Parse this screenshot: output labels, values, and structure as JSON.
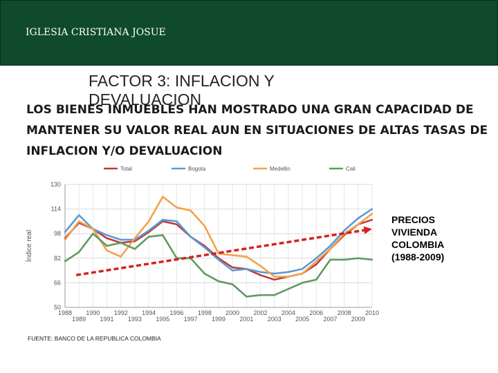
{
  "header": {
    "title": "IGLESIA CRISTIANA JOSUE"
  },
  "slide": {
    "title": "FACTOR 3: INFLACION Y DEVALUACION",
    "body": "LOS BIENES INMUEBLES HAN MOSTRADO UNA GRAN CAPACIDAD DE MANTENER SU VALOR REAL AUN EN SITUACIONES DE ALTAS TASAS DE INFLACION Y/O DEVALUACION",
    "side_label": "PRECIOS\nVIVIENDA\nCOLOMBIA\n(1988-2009)",
    "source": "FUENTE: BANCO DE LA REPUBLICA COLOMBIA"
  },
  "colors": {
    "header_bg": "#0f4a2a",
    "total": "#c0393b",
    "bogota": "#5b9bd5",
    "medellin": "#f2a24a",
    "cali": "#5f9a5f",
    "trend": "#d62020"
  },
  "chart_data": {
    "type": "line",
    "ylabel": "Índice real",
    "ylim": [
      50,
      130
    ],
    "yticks": [
      50,
      66,
      82,
      98,
      114,
      130
    ],
    "xlim": [
      1988,
      2010
    ],
    "xticks_top": [
      "1988",
      "1990",
      "1992",
      "1994",
      "1996",
      "1998",
      "2000",
      "2002",
      "2004",
      "2006",
      "2008",
      "2010"
    ],
    "xticks_bottom": [
      "1989",
      "1991",
      "1993",
      "1995",
      "1997",
      "1999",
      "2001",
      "2003",
      "2005",
      "2007",
      "2009"
    ],
    "x": [
      1988,
      1989,
      1990,
      1991,
      1992,
      1993,
      1994,
      1995,
      1996,
      1997,
      1998,
      1999,
      2000,
      2001,
      2002,
      2003,
      2004,
      2005,
      2006,
      2007,
      2008,
      2009,
      2010
    ],
    "series": [
      {
        "name": "Total",
        "color_key": "total",
        "values": [
          95,
          105,
          101,
          95,
          92,
          93,
          99,
          106,
          104,
          96,
          90,
          82,
          76,
          75,
          71,
          68,
          70,
          72,
          78,
          88,
          97,
          104,
          107
        ]
      },
      {
        "name": "Bogota",
        "color_key": "bogota",
        "values": [
          99,
          110,
          101,
          97,
          94,
          94,
          100,
          107,
          106,
          96,
          89,
          81,
          74,
          75,
          73,
          72,
          73,
          75,
          82,
          90,
          100,
          108,
          114
        ]
      },
      {
        "name": "Medellin",
        "color_key": "medellin",
        "values": [
          94,
          106,
          101,
          87,
          83,
          95,
          106,
          122,
          115,
          113,
          103,
          85,
          84,
          83,
          77,
          70,
          70,
          72,
          80,
          88,
          98,
          104,
          111
        ]
      },
      {
        "name": "Cali",
        "color_key": "cali",
        "values": [
          80,
          86,
          98,
          90,
          92,
          88,
          96,
          97,
          82,
          82,
          72,
          67,
          65,
          57,
          58,
          58,
          62,
          66,
          68,
          81,
          81,
          82,
          81
        ]
      }
    ],
    "trend_arrow": {
      "from": {
        "x": 1988.8,
        "y": 71
      },
      "to": {
        "x": 2010,
        "y": 101
      }
    }
  }
}
